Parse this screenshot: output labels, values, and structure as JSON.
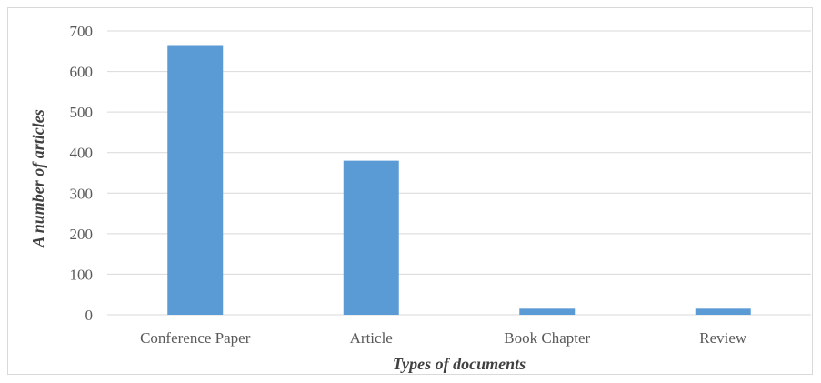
{
  "chart_data": {
    "type": "bar",
    "title": "",
    "categories": [
      "Conference Paper",
      "Article",
      "Book Chapter",
      "Review"
    ],
    "values": [
      663,
      380,
      15,
      15
    ],
    "xlabel": "Types of documents",
    "ylabel": "A number of articles",
    "ylim": [
      0,
      700
    ],
    "yticks": [
      0,
      100,
      200,
      300,
      400,
      500,
      600,
      700
    ],
    "grid": true,
    "legend": "none",
    "colors": {
      "bar": "#5b9bd5",
      "grid": "#d9d9d9",
      "text": "#595959"
    }
  }
}
